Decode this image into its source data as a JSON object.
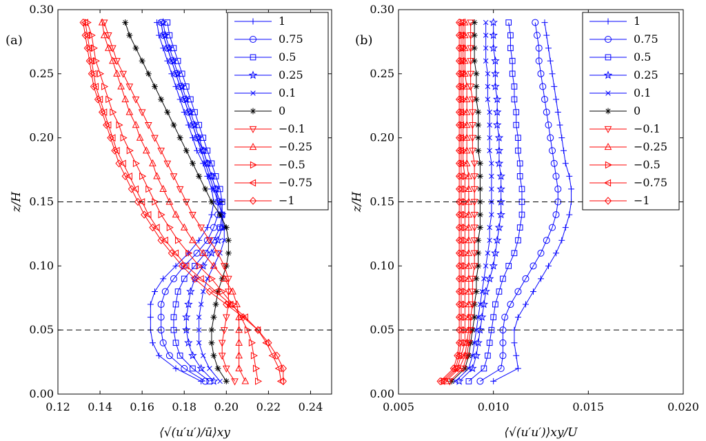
{
  "colors": {
    "blue": "#0000ff",
    "black": "#000000",
    "red": "#ff0000",
    "dashed": "#000000"
  },
  "chart_data": [
    {
      "type": "line",
      "panel_label": "(a)",
      "xlabel": "⟨√(u′u′)/ū⟩xy",
      "ylabel": "z/H",
      "xlim": [
        0.12,
        0.25
      ],
      "ylim": [
        0.0,
        0.3
      ],
      "xticks": [
        "0.12",
        "0.14",
        "0.16",
        "0.18",
        "0.20",
        "0.22",
        "0.24"
      ],
      "xtick_values": [
        0.12,
        0.14,
        0.16,
        0.18,
        0.2,
        0.22,
        0.24
      ],
      "yticks": [
        "0.00",
        "0.05",
        "0.10",
        "0.15",
        "0.20",
        "0.25",
        "0.30"
      ],
      "ytick_values": [
        0.0,
        0.05,
        0.1,
        0.15,
        0.2,
        0.25,
        0.3
      ],
      "hlines": [
        0.05,
        0.15
      ],
      "grid": false,
      "legend_position": "top-right",
      "z": [
        0.01,
        0.02,
        0.03,
        0.04,
        0.05,
        0.06,
        0.07,
        0.08,
        0.09,
        0.1,
        0.11,
        0.12,
        0.13,
        0.14,
        0.15,
        0.16,
        0.17,
        0.18,
        0.19,
        0.2,
        0.21,
        0.22,
        0.23,
        0.24,
        0.25,
        0.26,
        0.27,
        0.28,
        0.29
      ],
      "series": [
        {
          "name": "1",
          "marker": "plus",
          "color": "blue",
          "values": [
            0.188,
            0.176,
            0.168,
            0.165,
            0.164,
            0.164,
            0.164,
            0.166,
            0.17,
            0.176,
            0.182,
            0.187,
            0.191,
            0.193,
            0.194,
            0.193,
            0.191,
            0.189,
            0.186,
            0.184,
            0.182,
            0.18,
            0.178,
            0.176,
            0.174,
            0.172,
            0.17,
            0.168,
            0.167
          ]
        },
        {
          "name": "0.75",
          "marker": "circle",
          "color": "blue",
          "values": [
            0.19,
            0.18,
            0.173,
            0.17,
            0.169,
            0.169,
            0.169,
            0.171,
            0.175,
            0.18,
            0.186,
            0.191,
            0.194,
            0.196,
            0.196,
            0.195,
            0.193,
            0.191,
            0.189,
            0.186,
            0.184,
            0.182,
            0.18,
            0.178,
            0.176,
            0.174,
            0.172,
            0.17,
            0.169
          ]
        },
        {
          "name": "0.5",
          "marker": "square",
          "color": "blue",
          "values": [
            0.192,
            0.184,
            0.178,
            0.176,
            0.175,
            0.175,
            0.176,
            0.177,
            0.18,
            0.185,
            0.19,
            0.194,
            0.197,
            0.198,
            0.198,
            0.197,
            0.195,
            0.193,
            0.191,
            0.189,
            0.187,
            0.185,
            0.183,
            0.181,
            0.179,
            0.177,
            0.175,
            0.173,
            0.172
          ]
        },
        {
          "name": "0.25",
          "marker": "star",
          "color": "blue",
          "values": [
            0.194,
            0.188,
            0.184,
            0.182,
            0.181,
            0.181,
            0.182,
            0.183,
            0.185,
            0.189,
            0.193,
            0.196,
            0.198,
            0.198,
            0.197,
            0.195,
            0.193,
            0.191,
            0.189,
            0.187,
            0.185,
            0.183,
            0.181,
            0.179,
            0.177,
            0.175,
            0.173,
            0.171,
            0.17
          ]
        },
        {
          "name": "0.1",
          "marker": "x",
          "color": "blue",
          "values": [
            0.197,
            0.192,
            0.189,
            0.187,
            0.187,
            0.187,
            0.188,
            0.189,
            0.191,
            0.194,
            0.197,
            0.199,
            0.199,
            0.198,
            0.196,
            0.194,
            0.192,
            0.19,
            0.188,
            0.186,
            0.184,
            0.182,
            0.18,
            0.178,
            0.176,
            0.174,
            0.172,
            0.17,
            0.169
          ]
        },
        {
          "name": "0",
          "marker": "asterisk",
          "color": "black",
          "values": [
            0.2,
            0.196,
            0.194,
            0.193,
            0.193,
            0.194,
            0.195,
            0.196,
            0.198,
            0.2,
            0.201,
            0.201,
            0.2,
            0.197,
            0.193,
            0.19,
            0.187,
            0.184,
            0.181,
            0.178,
            0.175,
            0.172,
            0.169,
            0.166,
            0.163,
            0.16,
            0.157,
            0.154,
            0.152
          ]
        },
        {
          "name": "−0.1",
          "marker": "triangle-down",
          "color": "red",
          "values": [
            0.204,
            0.2,
            0.198,
            0.198,
            0.199,
            0.2,
            0.201,
            0.201,
            0.201,
            0.199,
            0.196,
            0.192,
            0.188,
            0.184,
            0.181,
            0.178,
            0.175,
            0.172,
            0.169,
            0.166,
            0.163,
            0.16,
            0.157,
            0.154,
            0.151,
            0.148,
            0.146,
            0.144,
            0.142
          ]
        },
        {
          "name": "−0.25",
          "marker": "triangle-up",
          "color": "red",
          "values": [
            0.209,
            0.206,
            0.206,
            0.206,
            0.206,
            0.206,
            0.205,
            0.203,
            0.199,
            0.194,
            0.189,
            0.184,
            0.18,
            0.176,
            0.173,
            0.17,
            0.167,
            0.165,
            0.162,
            0.159,
            0.157,
            0.154,
            0.152,
            0.15,
            0.148,
            0.146,
            0.144,
            0.142,
            0.141
          ]
        },
        {
          "name": "−0.5",
          "marker": "triangle-right",
          "color": "red",
          "values": [
            0.215,
            0.214,
            0.213,
            0.212,
            0.21,
            0.207,
            0.203,
            0.198,
            0.193,
            0.187,
            0.182,
            0.177,
            0.173,
            0.169,
            0.166,
            0.163,
            0.16,
            0.157,
            0.154,
            0.151,
            0.149,
            0.146,
            0.144,
            0.142,
            0.14,
            0.138,
            0.137,
            0.136,
            0.134
          ]
        },
        {
          "name": "−0.75",
          "marker": "triangle-left",
          "color": "red",
          "values": [
            0.226,
            0.225,
            0.222,
            0.219,
            0.215,
            0.209,
            0.202,
            0.195,
            0.188,
            0.181,
            0.176,
            0.171,
            0.167,
            0.163,
            0.16,
            0.157,
            0.154,
            0.151,
            0.148,
            0.146,
            0.144,
            0.142,
            0.14,
            0.138,
            0.137,
            0.136,
            0.135,
            0.134,
            0.133
          ]
        },
        {
          "name": "−1",
          "marker": "diamond",
          "color": "red",
          "values": [
            0.227,
            0.227,
            0.224,
            0.22,
            0.215,
            0.208,
            0.2,
            0.192,
            0.185,
            0.179,
            0.174,
            0.169,
            0.165,
            0.161,
            0.158,
            0.155,
            0.152,
            0.149,
            0.147,
            0.145,
            0.143,
            0.141,
            0.139,
            0.137,
            0.136,
            0.135,
            0.134,
            0.133,
            0.132
          ]
        }
      ]
    },
    {
      "type": "line",
      "panel_label": "(b)",
      "xlabel": "⟨√(u′u′)⟩xy/U",
      "ylabel": "z/H",
      "xlim": [
        0.005,
        0.02
      ],
      "ylim": [
        0.0,
        0.3
      ],
      "xticks": [
        "0.005",
        "0.010",
        "0.015",
        "0.020"
      ],
      "xtick_values": [
        0.005,
        0.01,
        0.015,
        0.02
      ],
      "yticks": [
        "0.00",
        "0.05",
        "0.10",
        "0.15",
        "0.20",
        "0.25",
        "0.30"
      ],
      "ytick_values": [
        0.0,
        0.05,
        0.1,
        0.15,
        0.2,
        0.25,
        0.3
      ],
      "hlines": [
        0.05,
        0.15
      ],
      "grid": false,
      "legend_position": "top-right",
      "z": [
        0.01,
        0.02,
        0.03,
        0.04,
        0.05,
        0.06,
        0.07,
        0.08,
        0.09,
        0.1,
        0.11,
        0.12,
        0.13,
        0.14,
        0.15,
        0.16,
        0.17,
        0.18,
        0.19,
        0.2,
        0.21,
        0.22,
        0.23,
        0.24,
        0.25,
        0.26,
        0.27,
        0.28,
        0.29
      ],
      "series": [
        {
          "name": "1",
          "marker": "plus",
          "color": "blue",
          "values": [
            0.01,
            0.0113,
            0.0112,
            0.0111,
            0.0111,
            0.0113,
            0.0117,
            0.0121,
            0.0125,
            0.0129,
            0.0133,
            0.0136,
            0.0138,
            0.014,
            0.0141,
            0.0141,
            0.014,
            0.0138,
            0.0137,
            0.0136,
            0.0135,
            0.0134,
            0.0133,
            0.0132,
            0.0131,
            0.013,
            0.0129,
            0.0128,
            0.0127
          ]
        },
        {
          "name": "0.75",
          "marker": "circle",
          "color": "blue",
          "values": [
            0.0093,
            0.0104,
            0.0105,
            0.0105,
            0.0105,
            0.0106,
            0.0109,
            0.0113,
            0.0117,
            0.0121,
            0.0125,
            0.0128,
            0.0131,
            0.0133,
            0.0134,
            0.0134,
            0.0133,
            0.0132,
            0.0131,
            0.013,
            0.0129,
            0.0128,
            0.0127,
            0.0126,
            0.0125,
            0.0124,
            0.0124,
            0.0123,
            0.0122
          ]
        },
        {
          "name": "0.5",
          "marker": "square",
          "color": "blue",
          "values": [
            0.0087,
            0.0095,
            0.0097,
            0.0098,
            0.0099,
            0.01,
            0.0101,
            0.0103,
            0.0105,
            0.0108,
            0.0111,
            0.0113,
            0.0114,
            0.0115,
            0.0115,
            0.0115,
            0.0114,
            0.0114,
            0.0113,
            0.0113,
            0.0112,
            0.0112,
            0.0111,
            0.0111,
            0.011,
            0.011,
            0.0109,
            0.0109,
            0.0108
          ]
        },
        {
          "name": "0.25",
          "marker": "star",
          "color": "blue",
          "values": [
            0.0082,
            0.0089,
            0.0091,
            0.0092,
            0.0093,
            0.0094,
            0.0095,
            0.0096,
            0.0098,
            0.01,
            0.0101,
            0.0102,
            0.0103,
            0.0104,
            0.0104,
            0.0104,
            0.0104,
            0.0103,
            0.0103,
            0.0103,
            0.0102,
            0.0102,
            0.0102,
            0.0101,
            0.0101,
            0.0101,
            0.01,
            0.01,
            0.01
          ]
        },
        {
          "name": "0.1",
          "marker": "x",
          "color": "blue",
          "values": [
            0.008,
            0.0087,
            0.0089,
            0.009,
            0.0091,
            0.0092,
            0.0093,
            0.0094,
            0.0095,
            0.0096,
            0.0097,
            0.0098,
            0.0098,
            0.0099,
            0.0099,
            0.0099,
            0.0099,
            0.0099,
            0.0098,
            0.0098,
            0.0098,
            0.0098,
            0.0097,
            0.0097,
            0.0097,
            0.0096,
            0.0096,
            0.0096,
            0.0096
          ]
        },
        {
          "name": "0",
          "marker": "asterisk",
          "color": "black",
          "values": [
            0.0078,
            0.0085,
            0.0087,
            0.0088,
            0.0089,
            0.009,
            0.009,
            0.0091,
            0.0091,
            0.0092,
            0.0092,
            0.0092,
            0.0093,
            0.0093,
            0.0093,
            0.0093,
            0.0093,
            0.0093,
            0.0092,
            0.0092,
            0.0092,
            0.0092,
            0.0091,
            0.0091,
            0.0091,
            0.009,
            0.009,
            0.009,
            0.009
          ]
        },
        {
          "name": "−0.1",
          "marker": "triangle-down",
          "color": "red",
          "values": [
            0.0077,
            0.0084,
            0.0086,
            0.0087,
            0.0088,
            0.0088,
            0.0089,
            0.0089,
            0.0089,
            0.009,
            0.009,
            0.009,
            0.009,
            0.009,
            0.009,
            0.009,
            0.009,
            0.009,
            0.0089,
            0.0089,
            0.0089,
            0.0089,
            0.0089,
            0.0088,
            0.0088,
            0.0088,
            0.0088,
            0.0088,
            0.0088
          ]
        },
        {
          "name": "−0.25",
          "marker": "triangle-up",
          "color": "red",
          "values": [
            0.0075,
            0.0082,
            0.0085,
            0.0086,
            0.0087,
            0.0087,
            0.0087,
            0.0087,
            0.0087,
            0.0087,
            0.0087,
            0.0087,
            0.0087,
            0.0087,
            0.0087,
            0.0087,
            0.0087,
            0.0086,
            0.0086,
            0.0086,
            0.0086,
            0.0086,
            0.0086,
            0.0086,
            0.0085,
            0.0085,
            0.0085,
            0.0085,
            0.0085
          ]
        },
        {
          "name": "−0.5",
          "marker": "triangle-right",
          "color": "red",
          "values": [
            0.0074,
            0.0081,
            0.0083,
            0.0085,
            0.0085,
            0.0085,
            0.0085,
            0.0085,
            0.0085,
            0.0085,
            0.0085,
            0.0085,
            0.0085,
            0.0085,
            0.0085,
            0.0085,
            0.0085,
            0.0084,
            0.0084,
            0.0084,
            0.0084,
            0.0084,
            0.0084,
            0.0084,
            0.0084,
            0.0084,
            0.0084,
            0.0084,
            0.0084
          ]
        },
        {
          "name": "−0.75",
          "marker": "triangle-left",
          "color": "red",
          "values": [
            0.0073,
            0.008,
            0.0082,
            0.0083,
            0.0083,
            0.0083,
            0.0083,
            0.0083,
            0.0083,
            0.0083,
            0.0083,
            0.0083,
            0.0083,
            0.0083,
            0.0083,
            0.0083,
            0.0083,
            0.0083,
            0.0083,
            0.0083,
            0.0083,
            0.0083,
            0.0083,
            0.0083,
            0.0083,
            0.0083,
            0.0083,
            0.0083,
            0.0083
          ]
        },
        {
          "name": "−1",
          "marker": "diamond",
          "color": "red",
          "values": [
            0.0072,
            0.0079,
            0.0081,
            0.0082,
            0.0082,
            0.0082,
            0.0082,
            0.0082,
            0.0082,
            0.0082,
            0.0082,
            0.0082,
            0.0082,
            0.0082,
            0.0082,
            0.0082,
            0.0082,
            0.0082,
            0.0082,
            0.0082,
            0.0082,
            0.0082,
            0.0082,
            0.0082,
            0.0082,
            0.0082,
            0.0082,
            0.0082,
            0.0082
          ]
        }
      ]
    }
  ]
}
